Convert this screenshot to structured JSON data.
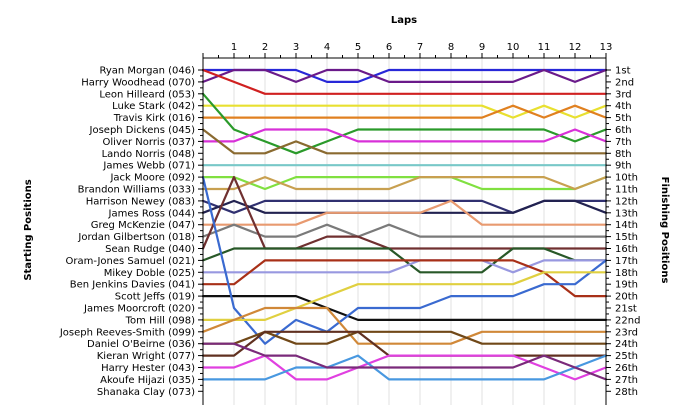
{
  "chart_data": {
    "type": "line",
    "title": "Laps",
    "ylabel_left": "Starting Positions",
    "ylabel_right": "Finishing Positions",
    "x": [
      0,
      1,
      2,
      3,
      4,
      5,
      6,
      7,
      8,
      9,
      10,
      11,
      12,
      13
    ],
    "x_tick_labels": [
      "1",
      "2",
      "3",
      "4",
      "5",
      "6",
      "7",
      "8",
      "9",
      "10",
      "11",
      "12",
      "13"
    ],
    "starting_labels": [
      "Ryan Morgan (046)",
      "Harry Woodhead (070)",
      "Leon Hilleard (053)",
      "Luke Stark (042)",
      "Travis Kirk (016)",
      "Joseph Dickens (045)",
      "Oliver Norris (037)",
      "Lando Norris (048)",
      "James Webb (071)",
      "Jack Moore (092)",
      "Brandon Williams (033)",
      "Harrison Newey (083)",
      "James Ross (044)",
      "Greg McKenzie (047)",
      "Jordan Gilbertson (018)",
      "Sean Rudge (040)",
      "Oram-Jones Samuel (021)",
      "Mikey Doble (025)",
      "Ben Jenkins Davies (041)",
      "Scott Jeffs (019)",
      "James Moorcroft (020)",
      "Tom Hill (098)",
      "Joseph Reeves-Smith (099)",
      "Daniel O'Beirne (036)",
      "Kieran Wright (077)",
      "Harry Hester (043)",
      "Akoufe Hijazi (035)",
      "Shanaka Clay (073)"
    ],
    "finishing_labels": [
      "1st",
      "2nd",
      "3rd",
      "4th",
      "5th",
      "6th",
      "7th",
      "8th",
      "9th",
      "10th",
      "11th",
      "12th",
      "13th",
      "14th",
      "15th",
      "16th",
      "17th",
      "18th",
      "19th",
      "20th",
      "21st",
      "22nd",
      "23rd",
      "24th",
      "25th",
      "26th",
      "27th",
      "28th"
    ],
    "series": [
      {
        "color": "#2828d8",
        "values": [
          1,
          1,
          1,
          1,
          2,
          2,
          1,
          1,
          1,
          1,
          1,
          1,
          1,
          1
        ]
      },
      {
        "color": "#6a1a8a",
        "values": [
          2,
          1,
          1,
          2,
          1,
          1,
          2,
          2,
          2,
          2,
          2,
          1,
          2,
          1
        ]
      },
      {
        "color": "#d02020",
        "values": [
          1,
          2,
          3,
          3,
          3,
          3,
          3,
          3,
          3,
          3,
          3,
          3,
          3,
          3
        ]
      },
      {
        "color": "#e8e030",
        "values": [
          4,
          4,
          4,
          4,
          4,
          4,
          4,
          4,
          4,
          4,
          5,
          4,
          5,
          4
        ]
      },
      {
        "color": "#e08020",
        "values": [
          5,
          5,
          5,
          5,
          5,
          5,
          5,
          5,
          5,
          5,
          4,
          5,
          4,
          5
        ]
      },
      {
        "color": "#2a9a2a",
        "values": [
          3,
          6,
          7,
          8,
          7,
          6,
          6,
          6,
          6,
          6,
          6,
          6,
          7,
          6
        ]
      },
      {
        "color": "#d830d8",
        "values": [
          7,
          7,
          6,
          6,
          6,
          7,
          7,
          7,
          7,
          7,
          7,
          7,
          6,
          7
        ]
      },
      {
        "color": "#8a6a30",
        "values": [
          6,
          8,
          8,
          7,
          8,
          8,
          8,
          8,
          8,
          8,
          8,
          8,
          8,
          8
        ]
      },
      {
        "color": "#78c8c8",
        "values": [
          9,
          9,
          9,
          9,
          9,
          9,
          9,
          9,
          9,
          9,
          9,
          9,
          9,
          9
        ]
      },
      {
        "color": "#80e040",
        "values": [
          10,
          10,
          11,
          10,
          10,
          10,
          10,
          10,
          10,
          11,
          11,
          11,
          11,
          10
        ]
      },
      {
        "color": "#c8a050",
        "values": [
          11,
          11,
          10,
          11,
          11,
          11,
          11,
          10,
          10,
          10,
          10,
          10,
          11,
          10
        ]
      },
      {
        "color": "#303070",
        "values": [
          12,
          13,
          12,
          12,
          12,
          12,
          12,
          12,
          12,
          12,
          13,
          12,
          12,
          12
        ]
      },
      {
        "color": "#222250",
        "values": [
          13,
          12,
          13,
          13,
          13,
          13,
          13,
          13,
          13,
          13,
          13,
          12,
          12,
          13
        ]
      },
      {
        "color": "#e89a70",
        "values": [
          14,
          14,
          14,
          14,
          13,
          13,
          13,
          13,
          12,
          14,
          14,
          14,
          14,
          14
        ]
      },
      {
        "color": "#7a7a7a",
        "values": [
          15,
          14,
          15,
          15,
          14,
          15,
          14,
          15,
          15,
          15,
          15,
          15,
          15,
          15
        ]
      },
      {
        "color": "#703030",
        "values": [
          16,
          10,
          16,
          16,
          15,
          15,
          16,
          16,
          16,
          16,
          16,
          16,
          16,
          16
        ]
      },
      {
        "color": "#285828",
        "values": [
          17,
          16,
          16,
          16,
          16,
          16,
          16,
          18,
          18,
          18,
          16,
          16,
          17,
          17
        ]
      },
      {
        "color": "#9898e0",
        "values": [
          18,
          18,
          18,
          18,
          18,
          18,
          18,
          17,
          17,
          17,
          18,
          17,
          17,
          17
        ]
      },
      {
        "color": "#a83018",
        "values": [
          19,
          19,
          17,
          17,
          17,
          17,
          17,
          17,
          17,
          17,
          17,
          18,
          20,
          20
        ]
      },
      {
        "color": "#101010",
        "values": [
          20,
          20,
          20,
          20,
          21,
          22,
          22,
          22,
          22,
          22,
          22,
          22,
          22,
          22
        ]
      },
      {
        "color": "#3a6ad0",
        "values": [
          10,
          21,
          24,
          22,
          23,
          21,
          21,
          21,
          20,
          20,
          20,
          19,
          19,
          17
        ]
      },
      {
        "color": "#e0d040",
        "values": [
          22,
          22,
          22,
          21,
          20,
          19,
          19,
          19,
          19,
          19,
          19,
          18,
          18,
          18
        ]
      },
      {
        "color": "#d08838",
        "values": [
          23,
          22,
          21,
          21,
          21,
          24,
          24,
          24,
          24,
          23,
          23,
          23,
          23,
          23
        ]
      },
      {
        "color": "#704818",
        "values": [
          24,
          24,
          23,
          24,
          24,
          23,
          23,
          23,
          23,
          24,
          24,
          24,
          24,
          24
        ]
      },
      {
        "color": "#603020",
        "values": [
          25,
          25,
          23,
          23,
          23,
          23,
          25,
          25,
          25,
          25,
          25,
          25,
          25,
          25
        ]
      },
      {
        "color": "#e040e0",
        "values": [
          26,
          26,
          25,
          27,
          27,
          26,
          25,
          25,
          25,
          25,
          25,
          26,
          27,
          26
        ]
      },
      {
        "color": "#4898e0",
        "values": [
          27,
          27,
          27,
          26,
          26,
          25,
          27,
          27,
          27,
          27,
          27,
          27,
          26,
          25
        ]
      },
      {
        "color": "#7a2a7a",
        "values": [
          24,
          24,
          25,
          25,
          26,
          26,
          26,
          26,
          26,
          26,
          26,
          25,
          26,
          27
        ]
      }
    ]
  }
}
